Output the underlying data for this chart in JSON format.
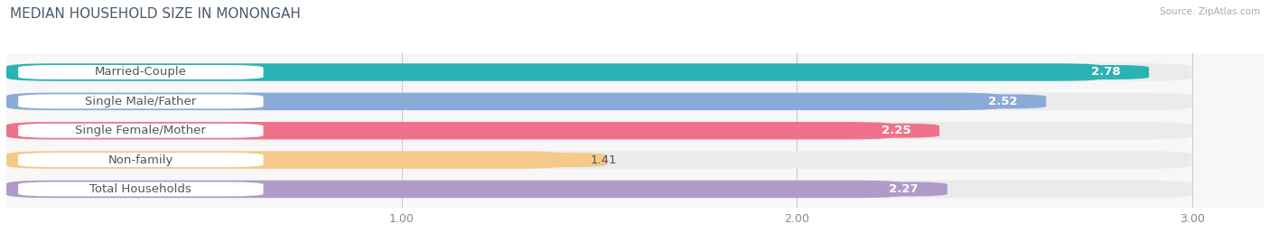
{
  "title": "MEDIAN HOUSEHOLD SIZE IN MONONGAH",
  "source": "Source: ZipAtlas.com",
  "categories": [
    "Married-Couple",
    "Single Male/Father",
    "Single Female/Mother",
    "Non-family",
    "Total Households"
  ],
  "values": [
    2.78,
    2.52,
    2.25,
    1.41,
    2.27
  ],
  "bar_colors": [
    "#29b3b3",
    "#8aaad8",
    "#f0728a",
    "#f5c98a",
    "#b09bc8"
  ],
  "bar_bg_color": "#ebebeb",
  "label_bg_color": "#ffffff",
  "xlim": [
    0,
    3.18
  ],
  "x_max_bar": 3.0,
  "xticks": [
    1.0,
    2.0,
    3.0
  ],
  "label_fontsize": 9.5,
  "value_fontsize": 9.5,
  "title_fontsize": 11,
  "title_color": "#4a5a6a",
  "label_text_color": "#555555",
  "background_color": "#ffffff",
  "plot_bg_color": "#f7f7f7"
}
